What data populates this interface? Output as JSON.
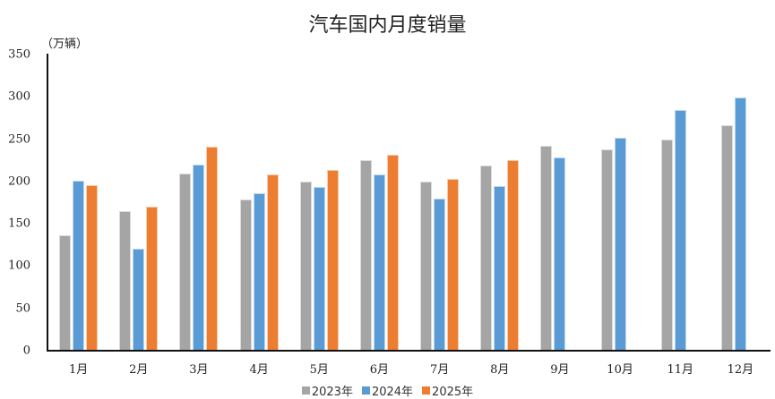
{
  "chart_data": {
    "type": "bar",
    "title": "汽车国内月度销量",
    "unit_label": "（万辆）",
    "xlabel": "",
    "ylabel": "万辆",
    "ylim": [
      0,
      350
    ],
    "yticks": [
      0,
      50,
      100,
      150,
      200,
      250,
      300,
      350
    ],
    "grid": false,
    "legend_position": "bottom",
    "categories": [
      "1月",
      "2月",
      "3月",
      "4月",
      "5月",
      "6月",
      "7月",
      "8月",
      "9月",
      "10月",
      "11月",
      "12月"
    ],
    "series": [
      {
        "name": "2023年",
        "color": "#a5a5a5",
        "values": [
          136,
          165,
          209,
          179,
          200,
          225,
          200,
          219,
          242,
          238,
          250,
          267
        ]
      },
      {
        "name": "2024年",
        "color": "#5b9bd5",
        "values": [
          201,
          121,
          220,
          186,
          194,
          208,
          180,
          195,
          228,
          252,
          284,
          299
        ]
      },
      {
        "name": "2025年",
        "color": "#ed7d31",
        "values": [
          196,
          170,
          241,
          208,
          214,
          232,
          203,
          225,
          null,
          null,
          null,
          null
        ]
      }
    ]
  }
}
